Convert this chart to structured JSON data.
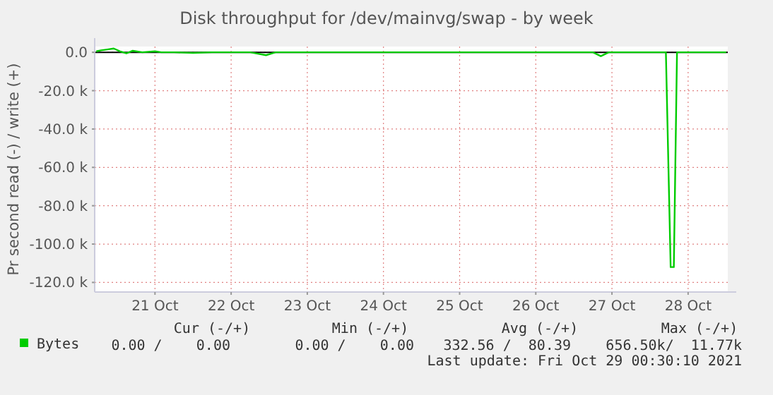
{
  "chart_data": {
    "type": "line",
    "title": "Disk throughput for /dev/mainvg/swap - by week",
    "ylabel": "Pr second read (-) / write (+)",
    "x": [
      "2021-10-20T17:30",
      "2021-10-20T19:00",
      "2021-10-20T21:00",
      "2021-10-20T23:00",
      "2021-10-21T01:00",
      "2021-10-21T03:00",
      "2021-10-21T05:00",
      "2021-10-21T08:00",
      "2021-10-21T12:00",
      "2021-10-21T14:00",
      "2021-10-21T18:00",
      "2021-10-22T00:00",
      "2021-10-22T06:00",
      "2021-10-22T12:00",
      "2021-10-22T18:00",
      "2021-10-22T23:00",
      "2021-10-23T02:00",
      "2021-10-23T12:00",
      "2021-10-24T00:00",
      "2021-10-24T12:00",
      "2021-10-25T00:00",
      "2021-10-25T12:00",
      "2021-10-26T00:00",
      "2021-10-26T12:00",
      "2021-10-27T00:00",
      "2021-10-27T06:00",
      "2021-10-27T08:30",
      "2021-10-27T11:00",
      "2021-10-27T18:00",
      "2021-10-28T00:00",
      "2021-10-28T05:00",
      "2021-10-28T06:30",
      "2021-10-28T07:30",
      "2021-10-28T08:30",
      "2021-10-28T16:00",
      "2021-10-29T00:00"
    ],
    "series": [
      {
        "name": "Bytes",
        "color": "#00cc00",
        "values": [
          500,
          1000,
          1500,
          2000,
          500,
          -500,
          800,
          0,
          500,
          0,
          0,
          -300,
          0,
          0,
          0,
          -1500,
          0,
          0,
          0,
          0,
          0,
          0,
          0,
          0,
          0,
          0,
          -2000,
          0,
          0,
          0,
          0,
          -112000,
          -112000,
          0,
          0,
          0
        ]
      }
    ],
    "xlim": [
      "2021-10-20T17:00",
      "2021-10-29T00:30"
    ],
    "xticks": [
      {
        "value": "2021-10-21T12:00",
        "label": "21 Oct"
      },
      {
        "value": "2021-10-22T12:00",
        "label": "22 Oct"
      },
      {
        "value": "2021-10-23T12:00",
        "label": "23 Oct"
      },
      {
        "value": "2021-10-24T12:00",
        "label": "24 Oct"
      },
      {
        "value": "2021-10-25T12:00",
        "label": "25 Oct"
      },
      {
        "value": "2021-10-26T12:00",
        "label": "26 Oct"
      },
      {
        "value": "2021-10-27T12:00",
        "label": "27 Oct"
      },
      {
        "value": "2021-10-28T12:00",
        "label": "28 Oct"
      }
    ],
    "ylim": [
      -125000,
      3000
    ],
    "yticks": [
      {
        "value": 0,
        "label": "0.0"
      },
      {
        "value": -20000,
        "label": "-20.0 k"
      },
      {
        "value": -40000,
        "label": "-40.0 k"
      },
      {
        "value": -60000,
        "label": "-60.0 k"
      },
      {
        "value": -80000,
        "label": "-80.0 k"
      },
      {
        "value": -100000,
        "label": "-100.0 k"
      },
      {
        "value": -120000,
        "label": "-120.0 k"
      }
    ],
    "grid": true,
    "legend": "bottom left",
    "marker": "none",
    "line_style": "solid",
    "annotations": [
      "Cur (-/+)",
      "Min (-/+)",
      "Avg (-/+)",
      "Max (-/+)",
      "0.00 /    0.00",
      "0.00 /    0.00",
      "332.56 /  80.39",
      "656.50k/  11.77k",
      "Last update: Fri Oct 29 00:30:10 2021"
    ]
  }
}
